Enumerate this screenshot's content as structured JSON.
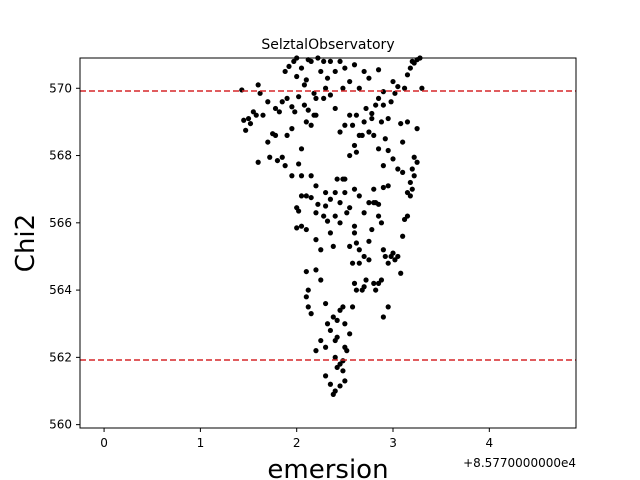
{
  "chart_data": {
    "type": "scatter",
    "title": "SelztalObservatory",
    "xlabel": "emersion",
    "ylabel": "Chi2",
    "x_offset_label": "+8.5770000000e4",
    "xlim": [
      -0.25,
      4.9
    ],
    "ylim": [
      559.9,
      570.9
    ],
    "x_ticks": [
      0,
      1,
      2,
      3,
      4
    ],
    "y_ticks": [
      560,
      562,
      564,
      566,
      568,
      570
    ],
    "hlines": [
      {
        "y": 569.92,
        "color": "#d62728",
        "style": "dashed"
      },
      {
        "y": 561.92,
        "color": "#d62728",
        "style": "dashed"
      }
    ],
    "marker_color": "#000000",
    "points": [
      [
        1.43,
        569.95
      ],
      [
        1.45,
        569.05
      ],
      [
        1.47,
        568.75
      ],
      [
        1.5,
        569.1
      ],
      [
        1.55,
        569.3
      ],
      [
        1.6,
        570.1
      ],
      [
        1.62,
        569.85
      ],
      [
        1.6,
        567.8
      ],
      [
        1.65,
        569.2
      ],
      [
        1.7,
        568.4
      ],
      [
        1.72,
        567.95
      ],
      [
        1.75,
        568.65
      ],
      [
        1.78,
        568.6
      ],
      [
        1.8,
        567.85
      ],
      [
        1.82,
        569.3
      ],
      [
        1.85,
        569.6
      ],
      [
        1.88,
        570.5
      ],
      [
        1.9,
        569.7
      ],
      [
        1.92,
        570.65
      ],
      [
        1.95,
        569.45
      ],
      [
        1.97,
        570.8
      ],
      [
        2.0,
        570.35
      ],
      [
        2.02,
        569.75
      ],
      [
        2.05,
        570.6
      ],
      [
        2.08,
        569.5
      ],
      [
        2.1,
        570.25
      ],
      [
        2.12,
        569.35
      ],
      [
        2.15,
        570.8
      ],
      [
        2.18,
        569.2
      ],
      [
        2.2,
        569.7
      ],
      [
        2.25,
        570.5
      ],
      [
        2.28,
        570.8
      ],
      [
        1.88,
        567.7
      ],
      [
        1.95,
        567.4
      ],
      [
        2.05,
        567.4
      ],
      [
        2.15,
        567.4
      ],
      [
        2.2,
        567.1
      ],
      [
        2.0,
        566.45
      ],
      [
        2.02,
        566.35
      ],
      [
        2.05,
        566.8
      ],
      [
        2.1,
        566.8
      ],
      [
        2.15,
        566.75
      ],
      [
        2.0,
        565.85
      ],
      [
        2.05,
        565.9
      ],
      [
        2.1,
        565.8
      ],
      [
        2.2,
        565.5
      ],
      [
        2.25,
        565.2
      ],
      [
        2.28,
        566.2
      ],
      [
        2.3,
        566.5
      ],
      [
        2.32,
        566.05
      ],
      [
        2.35,
        565.7
      ],
      [
        2.38,
        565.3
      ],
      [
        2.4,
        566.9
      ],
      [
        2.42,
        567.3
      ],
      [
        2.45,
        566.6
      ],
      [
        2.48,
        567.3
      ],
      [
        2.5,
        566.9
      ],
      [
        2.3,
        566.9
      ],
      [
        2.35,
        566.7
      ],
      [
        2.2,
        566.3
      ],
      [
        2.22,
        566.55
      ],
      [
        2.4,
        566.2
      ],
      [
        2.45,
        566.0
      ],
      [
        2.1,
        564.55
      ],
      [
        2.12,
        564.0
      ],
      [
        2.1,
        563.8
      ],
      [
        2.12,
        563.5
      ],
      [
        2.15,
        563.3
      ],
      [
        2.2,
        564.6
      ],
      [
        2.25,
        564.3
      ],
      [
        2.3,
        563.6
      ],
      [
        2.32,
        563.0
      ],
      [
        2.35,
        562.8
      ],
      [
        2.38,
        563.2
      ],
      [
        2.4,
        562.5
      ],
      [
        2.42,
        563.1
      ],
      [
        2.45,
        563.4
      ],
      [
        2.48,
        563.5
      ],
      [
        2.5,
        563.0
      ],
      [
        2.2,
        562.2
      ],
      [
        2.25,
        562.5
      ],
      [
        2.3,
        562.3
      ],
      [
        2.42,
        562.6
      ],
      [
        2.5,
        562.3
      ],
      [
        2.52,
        562.2
      ],
      [
        2.4,
        562.0
      ],
      [
        2.45,
        561.8
      ],
      [
        2.48,
        561.6
      ],
      [
        2.5,
        561.3
      ],
      [
        2.45,
        561.15
      ],
      [
        2.4,
        561.0
      ],
      [
        2.38,
        560.9
      ],
      [
        2.42,
        561.7
      ],
      [
        2.35,
        561.2
      ],
      [
        2.3,
        561.45
      ],
      [
        2.48,
        561.9
      ],
      [
        2.55,
        562.7
      ],
      [
        2.58,
        563.5
      ],
      [
        2.6,
        564.2
      ],
      [
        2.62,
        564.0
      ],
      [
        2.65,
        564.8
      ],
      [
        2.7,
        565.0
      ],
      [
        2.75,
        564.9
      ],
      [
        2.78,
        565.8
      ],
      [
        2.8,
        566.6
      ],
      [
        2.82,
        566.6
      ],
      [
        2.85,
        566.2
      ],
      [
        2.88,
        566.0
      ],
      [
        2.9,
        565.2
      ],
      [
        2.92,
        565.0
      ],
      [
        2.95,
        564.8
      ],
      [
        2.98,
        565.0
      ],
      [
        3.0,
        565.1
      ],
      [
        3.02,
        564.9
      ],
      [
        3.05,
        565.0
      ],
      [
        3.08,
        564.5
      ],
      [
        3.1,
        565.6
      ],
      [
        3.12,
        566.1
      ],
      [
        3.15,
        566.2
      ],
      [
        3.18,
        566.8
      ],
      [
        3.2,
        567.0
      ],
      [
        3.22,
        567.4
      ],
      [
        3.25,
        567.8
      ],
      [
        3.22,
        567.95
      ],
      [
        3.2,
        567.6
      ],
      [
        3.18,
        567.2
      ],
      [
        3.15,
        566.9
      ],
      [
        3.1,
        567.5
      ],
      [
        3.05,
        567.6
      ],
      [
        3.0,
        567.9
      ],
      [
        2.95,
        567.1
      ],
      [
        2.9,
        567.05
      ],
      [
        2.85,
        566.55
      ],
      [
        2.8,
        567.0
      ],
      [
        2.75,
        566.6
      ],
      [
        2.7,
        566.3
      ],
      [
        2.65,
        566.8
      ],
      [
        2.6,
        567.0
      ],
      [
        2.55,
        566.45
      ],
      [
        2.52,
        566.3
      ],
      [
        2.5,
        567.3
      ],
      [
        2.75,
        565.45
      ],
      [
        2.8,
        564.2
      ],
      [
        2.82,
        564.0
      ],
      [
        2.85,
        564.2
      ],
      [
        2.88,
        564.3
      ],
      [
        2.9,
        563.2
      ],
      [
        2.95,
        563.5
      ],
      [
        2.7,
        564.1
      ],
      [
        2.72,
        564.3
      ],
      [
        2.68,
        564.0
      ],
      [
        2.6,
        565.7
      ],
      [
        2.62,
        565.4
      ],
      [
        2.55,
        565.3
      ],
      [
        2.58,
        564.8
      ],
      [
        2.65,
        565.2
      ],
      [
        2.6,
        565.9
      ],
      [
        2.55,
        568.0
      ],
      [
        2.6,
        568.3
      ],
      [
        2.58,
        568.9
      ],
      [
        2.62,
        569.2
      ],
      [
        2.65,
        568.6
      ],
      [
        2.7,
        569.0
      ],
      [
        2.72,
        569.4
      ],
      [
        2.75,
        568.7
      ],
      [
        2.78,
        569.1
      ],
      [
        2.8,
        568.6
      ],
      [
        2.82,
        569.5
      ],
      [
        2.85,
        568.2
      ],
      [
        2.88,
        569.0
      ],
      [
        2.9,
        569.5
      ],
      [
        2.92,
        568.5
      ],
      [
        2.95,
        569.1
      ],
      [
        2.98,
        569.6
      ],
      [
        3.0,
        570.2
      ],
      [
        3.02,
        569.85
      ],
      [
        3.05,
        570.05
      ],
      [
        3.08,
        568.95
      ],
      [
        3.12,
        570.0
      ],
      [
        3.15,
        570.4
      ],
      [
        3.18,
        570.6
      ],
      [
        3.2,
        570.8
      ],
      [
        3.22,
        570.75
      ],
      [
        3.25,
        570.85
      ],
      [
        3.28,
        570.9
      ],
      [
        3.3,
        570.0
      ],
      [
        3.25,
        568.8
      ],
      [
        3.15,
        569.0
      ],
      [
        3.1,
        568.4
      ],
      [
        2.55,
        569.2
      ],
      [
        2.5,
        568.9
      ],
      [
        2.45,
        568.7
      ],
      [
        2.4,
        569.4
      ],
      [
        2.35,
        569.8
      ],
      [
        2.3,
        570.0
      ],
      [
        2.28,
        569.7
      ],
      [
        2.2,
        569.2
      ],
      [
        2.15,
        568.9
      ],
      [
        2.1,
        569.0
      ],
      [
        2.05,
        568.2
      ],
      [
        2.02,
        567.75
      ],
      [
        2.4,
        570.5
      ],
      [
        2.45,
        570.8
      ],
      [
        2.5,
        570.6
      ],
      [
        2.55,
        570.2
      ],
      [
        2.6,
        570.7
      ],
      [
        2.65,
        570.0
      ],
      [
        2.7,
        570.5
      ],
      [
        2.75,
        570.3
      ],
      [
        2.85,
        570.55
      ],
      [
        2.9,
        569.9
      ],
      [
        2.35,
        570.8
      ],
      [
        2.32,
        570.3
      ],
      [
        2.48,
        570.0
      ],
      [
        2.9,
        567.7
      ],
      [
        2.95,
        568.15
      ],
      [
        2.62,
        568.1
      ],
      [
        2.68,
        568.6
      ],
      [
        2.78,
        569.25
      ],
      [
        2.85,
        569.7
      ],
      [
        1.95,
        568.8
      ],
      [
        1.9,
        568.6
      ],
      [
        1.85,
        567.95
      ],
      [
        1.78,
        569.4
      ],
      [
        1.7,
        569.6
      ],
      [
        1.58,
        569.2
      ],
      [
        1.52,
        568.95
      ],
      [
        1.98,
        569.3
      ],
      [
        2.08,
        570.1
      ],
      [
        2.18,
        569.85
      ],
      [
        2.0,
        570.9
      ],
      [
        2.12,
        570.85
      ],
      [
        2.22,
        570.9
      ]
    ]
  }
}
